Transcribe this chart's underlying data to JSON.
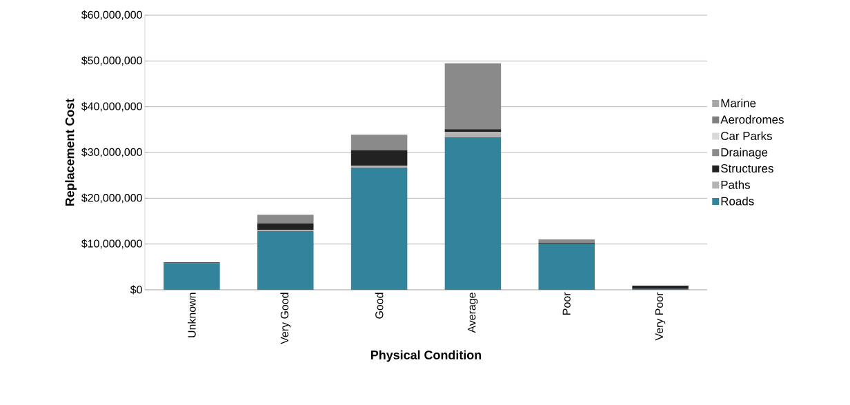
{
  "chart_data": {
    "type": "bar",
    "stacked": true,
    "xlabel": "Physical Condition",
    "ylabel": "Replacement Cost",
    "categories": [
      "Unknown",
      "Very Good",
      "Good",
      "Average",
      "Poor",
      "Very Poor"
    ],
    "series": [
      {
        "name": "Roads",
        "color": "#31849b",
        "values": [
          5800000,
          12800000,
          26700000,
          33300000,
          10000000,
          200000
        ]
      },
      {
        "name": "Paths",
        "color": "#b3b3b3",
        "values": [
          0,
          300000,
          400000,
          1200000,
          0,
          0
        ]
      },
      {
        "name": "Structures",
        "color": "#222222",
        "values": [
          200000,
          1400000,
          3400000,
          600000,
          200000,
          700000
        ]
      },
      {
        "name": "Drainage",
        "color": "#8a8a8a",
        "values": [
          0,
          1900000,
          3400000,
          14400000,
          800000,
          0
        ]
      },
      {
        "name": "Car Parks",
        "color": "#d9d9d9",
        "values": [
          0,
          0,
          0,
          0,
          0,
          0
        ]
      },
      {
        "name": "Aerodromes",
        "color": "#7f7f7f",
        "values": [
          0,
          0,
          0,
          0,
          0,
          0
        ]
      },
      {
        "name": "Marine",
        "color": "#a6a6a6",
        "values": [
          0,
          0,
          0,
          0,
          0,
          0
        ]
      }
    ],
    "ylim": [
      0,
      60000000
    ],
    "yticks": [
      {
        "value": 0,
        "label": "$0"
      },
      {
        "value": 10000000,
        "label": "$10,000,000"
      },
      {
        "value": 20000000,
        "label": "$20,000,000"
      },
      {
        "value": 30000000,
        "label": "$30,000,000"
      },
      {
        "value": 40000000,
        "label": "$40,000,000"
      },
      {
        "value": 50000000,
        "label": "$50,000,000"
      },
      {
        "value": 60000000,
        "label": "$60,000,000"
      }
    ],
    "grid": "y",
    "legend": "right"
  }
}
